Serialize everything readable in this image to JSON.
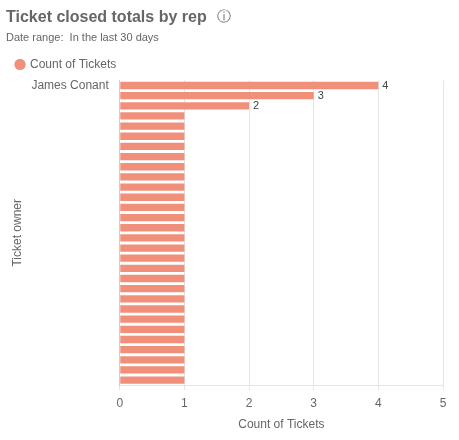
{
  "chart_data": {
    "type": "bar",
    "orientation": "horizontal",
    "title": "Ticket closed totals by rep",
    "subtitle": "Date range:  In the last 30 days",
    "annotations": [
      {
        "text": "ⓘ"
      }
    ],
    "categories": [
      "James Conant",
      null,
      null,
      null,
      null,
      null,
      null,
      null,
      null,
      null,
      null,
      null,
      null,
      null,
      null,
      null,
      null,
      null,
      null,
      null,
      null,
      null,
      null,
      null,
      null,
      null,
      null,
      null,
      null,
      null
    ],
    "series": [
      {
        "name": "Count of Tickets",
        "color": "#f0907a",
        "values": [
          4,
          3,
          2,
          1,
          1,
          1,
          1,
          1,
          1,
          1,
          1,
          1,
          1,
          1,
          1,
          1,
          1,
          1,
          1,
          1,
          1,
          1,
          1,
          1,
          1,
          1,
          1,
          1,
          1,
          1
        ],
        "value_labels": [
          "4",
          "3",
          "2",
          null,
          null,
          null,
          null,
          null,
          null,
          null,
          null,
          null,
          null,
          null,
          null,
          null,
          null,
          null,
          null,
          null,
          null,
          null,
          null,
          null,
          null,
          null,
          null,
          null,
          null,
          null
        ]
      }
    ],
    "data_labels": true,
    "xlabel": "Count of Tickets",
    "ylabel": "Ticket owner",
    "xlim": [
      0,
      5
    ],
    "xticks": [
      0,
      1,
      2,
      3,
      4,
      5
    ],
    "grid": "x",
    "legend": "upper left"
  }
}
